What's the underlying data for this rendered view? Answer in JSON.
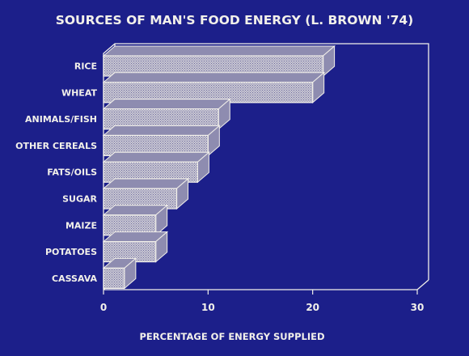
{
  "colors": {
    "background": "#1c1f8a",
    "foreground": "#f2f0ea",
    "bar_fill": "#c9c7d2",
    "bar_side": "#8e8cb0"
  },
  "chart_data": {
    "type": "bar",
    "orientation": "horizontal",
    "style": "3d",
    "title": "SOURCES OF MAN'S FOOD ENERGY (L. BROWN '74)",
    "xlabel": "PERCENTAGE OF ENERGY SUPPLIED",
    "ylabel": "",
    "categories": [
      "RICE",
      "WHEAT",
      "ANIMALS/FISH",
      "OTHER CEREALS",
      "FATS/OILS",
      "SUGAR",
      "MAIZE",
      "POTATOES",
      "CASSAVA"
    ],
    "values": [
      21,
      20,
      11,
      10,
      9,
      7,
      5,
      5,
      2
    ],
    "xlim": [
      0,
      30
    ],
    "xticks": [
      0,
      10,
      20,
      30
    ],
    "grid": false
  }
}
